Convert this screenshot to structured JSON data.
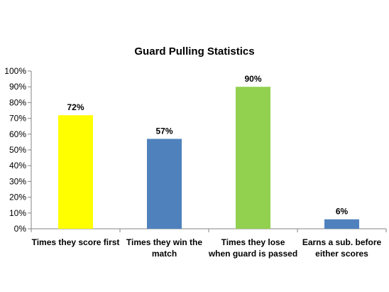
{
  "chart_data": {
    "type": "bar",
    "title": "Guard Pulling Statistics",
    "categories": [
      "Times they score first",
      "Times they win the match",
      "Times they lose when guard is passed",
      "Earns a sub. before either scores"
    ],
    "category_lines": [
      [
        "Times they score first"
      ],
      [
        "Times they win the",
        "match"
      ],
      [
        "Times they lose",
        "when guard is passed"
      ],
      [
        "Earns a sub. before",
        "either scores"
      ]
    ],
    "values": [
      72,
      57,
      90,
      6
    ],
    "data_labels": [
      "72%",
      "57%",
      "90%",
      "6%"
    ],
    "bar_colors": [
      "#FFFF00",
      "#4F81BD",
      "#92D050",
      "#4F81BD"
    ],
    "ylim": [
      0,
      100
    ],
    "yticks": [
      0,
      10,
      20,
      30,
      40,
      50,
      60,
      70,
      80,
      90,
      100
    ],
    "ytick_labels": [
      "0%",
      "10%",
      "20%",
      "30%",
      "40%",
      "50%",
      "60%",
      "70%",
      "80%",
      "90%",
      "100%"
    ],
    "xlabel": "",
    "ylabel": "",
    "grid": false,
    "legend": "none"
  }
}
